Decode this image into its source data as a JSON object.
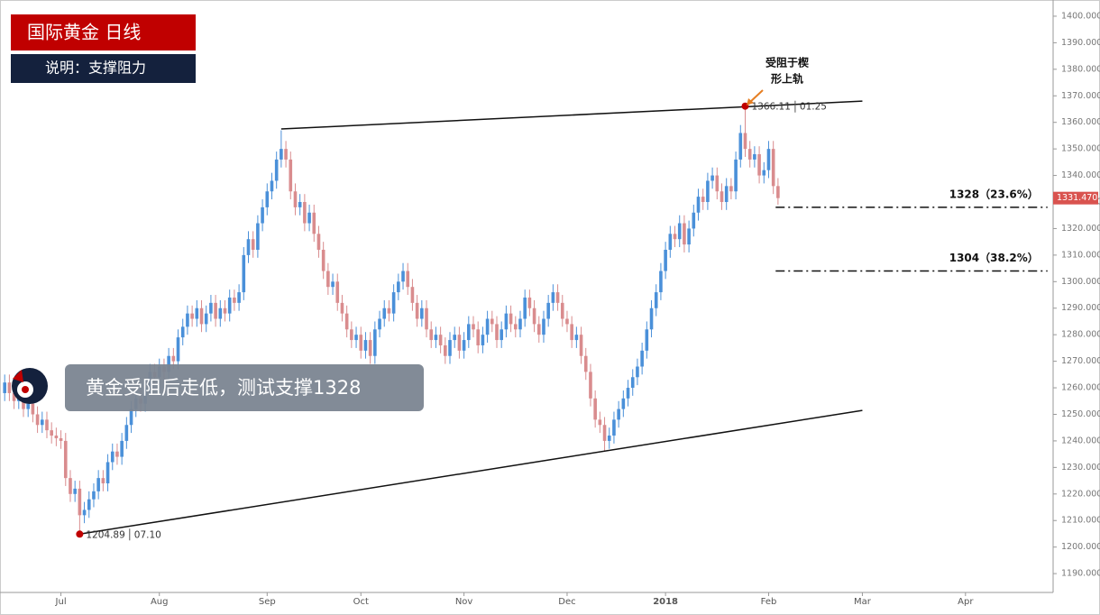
{
  "chart_data": {
    "type": "candlestick",
    "title": "国际黄金  日线",
    "subtitle": "说明：支撑阻力",
    "callout": "黄金受阻后走低，测试支撑1328",
    "annotation": [
      "受阻于楔",
      "形上轨"
    ],
    "up_color": "#4a90d9",
    "down_color": "#d98c8e",
    "xlim": [
      -1,
      223.7
    ],
    "ylim": [
      1182.9,
      1406.1
    ],
    "xticks": [
      {
        "value": 12,
        "label": "Jul"
      },
      {
        "value": 33,
        "label": "Aug"
      },
      {
        "value": 56,
        "label": "Sep"
      },
      {
        "value": 76,
        "label": "Oct"
      },
      {
        "value": 98,
        "label": "Nov"
      },
      {
        "value": 120,
        "label": "Dec"
      },
      {
        "value": 141,
        "label": "2018"
      },
      {
        "value": 163,
        "label": "Feb"
      },
      {
        "value": 183,
        "label": "Mar"
      },
      {
        "value": 205,
        "label": "Apr"
      }
    ],
    "yticks": [
      {
        "value": 1190,
        "label": "1190.000"
      },
      {
        "value": 1200,
        "label": "1200.000"
      },
      {
        "value": 1210,
        "label": "1210.000"
      },
      {
        "value": 1220,
        "label": "1220.000"
      },
      {
        "value": 1230,
        "label": "1230.000"
      },
      {
        "value": 1240,
        "label": "1240.000"
      },
      {
        "value": 1250,
        "label": "1250.000"
      },
      {
        "value": 1260,
        "label": "1260.000"
      },
      {
        "value": 1270,
        "label": "1270.000"
      },
      {
        "value": 1280,
        "label": "1280.000"
      },
      {
        "value": 1290,
        "label": "1290.000"
      },
      {
        "value": 1300,
        "label": "1300.000"
      },
      {
        "value": 1310,
        "label": "1310.000"
      },
      {
        "value": 1320,
        "label": "1320.000"
      },
      {
        "value": 1330,
        "label": "1330.000"
      },
      {
        "value": 1340,
        "label": "1340.000"
      },
      {
        "value": 1350,
        "label": "1350.000"
      },
      {
        "value": 1360,
        "label": "1360.000"
      },
      {
        "value": 1370,
        "label": "1370.000"
      },
      {
        "value": 1380,
        "label": "1380.000"
      },
      {
        "value": 1390,
        "label": "1390.000"
      },
      {
        "value": 1400,
        "label": "1400.000"
      }
    ],
    "open": [
      1258,
      1262,
      1258,
      1255,
      1257,
      1252,
      1254,
      1250,
      1246,
      1248,
      1244,
      1242,
      1241,
      1240,
      1226,
      1220,
      1222,
      1212,
      1214,
      1218,
      1221,
      1226,
      1224,
      1232,
      1236,
      1234,
      1240,
      1246,
      1252,
      1256,
      1254,
      1260,
      1266,
      1264,
      1268,
      1266,
      1272,
      1270,
      1279,
      1283,
      1288,
      1286,
      1290,
      1284,
      1288,
      1292,
      1286,
      1290,
      1288,
      1294,
      1292,
      1296,
      1310,
      1316,
      1312,
      1322,
      1328,
      1334,
      1338,
      1346,
      1350,
      1346,
      1334,
      1328,
      1330,
      1322,
      1326,
      1318,
      1312,
      1304,
      1298,
      1300,
      1292,
      1288,
      1282,
      1278,
      1280,
      1274,
      1278,
      1272,
      1282,
      1286,
      1290,
      1288,
      1296,
      1300,
      1304,
      1298,
      1292,
      1286,
      1290,
      1282,
      1278,
      1280,
      1276,
      1272,
      1278,
      1280,
      1274,
      1278,
      1284,
      1282,
      1276,
      1280,
      1286,
      1284,
      1278,
      1282,
      1288,
      1284,
      1282,
      1286,
      1294,
      1290,
      1284,
      1280,
      1286,
      1292,
      1296,
      1292,
      1286,
      1284,
      1278,
      1280,
      1272,
      1266,
      1256,
      1248,
      1246,
      1240,
      1242,
      1248,
      1252,
      1256,
      1260,
      1264,
      1268,
      1274,
      1282,
      1290,
      1296,
      1304,
      1312,
      1318,
      1316,
      1322,
      1314,
      1320,
      1326,
      1332,
      1330,
      1338,
      1340,
      1334,
      1330,
      1336,
      1334,
      1346,
      1356,
      1350,
      1346,
      1348,
      1340,
      1342,
      1350,
      1336
    ],
    "high": [
      1265,
      1265,
      1261,
      1260,
      1260,
      1257,
      1257,
      1253,
      1251,
      1251,
      1247,
      1245,
      1244,
      1243,
      1229,
      1225,
      1225,
      1217,
      1221,
      1224,
      1229,
      1229,
      1235,
      1239,
      1239,
      1243,
      1249,
      1255,
      1259,
      1259,
      1263,
      1269,
      1269,
      1271,
      1271,
      1275,
      1275,
      1282,
      1286,
      1291,
      1291,
      1293,
      1293,
      1291,
      1295,
      1295,
      1293,
      1293,
      1297,
      1297,
      1299,
      1313,
      1319,
      1319,
      1325,
      1331,
      1337,
      1341,
      1349,
      1357,
      1353,
      1349,
      1337,
      1333,
      1333,
      1329,
      1329,
      1321,
      1315,
      1307,
      1303,
      1303,
      1295,
      1291,
      1285,
      1283,
      1283,
      1281,
      1281,
      1285,
      1289,
      1293,
      1293,
      1299,
      1303,
      1307,
      1307,
      1301,
      1295,
      1293,
      1293,
      1285,
      1283,
      1283,
      1279,
      1281,
      1283,
      1283,
      1281,
      1287,
      1287,
      1285,
      1283,
      1289,
      1289,
      1287,
      1285,
      1291,
      1291,
      1287,
      1289,
      1297,
      1297,
      1293,
      1287,
      1289,
      1295,
      1299,
      1299,
      1295,
      1289,
      1287,
      1283,
      1283,
      1275,
      1269,
      1259,
      1251,
      1249,
      1245,
      1251,
      1255,
      1259,
      1263,
      1267,
      1271,
      1277,
      1285,
      1293,
      1299,
      1307,
      1315,
      1321,
      1321,
      1325,
      1325,
      1323,
      1329,
      1335,
      1335,
      1341,
      1343,
      1343,
      1337,
      1339,
      1339,
      1349,
      1359,
      1366.11,
      1353,
      1351,
      1351,
      1345,
      1353,
      1353,
      1339
    ],
    "low": [
      1255,
      1255,
      1252,
      1252,
      1249,
      1249,
      1247,
      1243,
      1243,
      1241,
      1239,
      1238,
      1237,
      1223,
      1217,
      1217,
      1204.89,
      1209,
      1211,
      1215,
      1218,
      1221,
      1221,
      1229,
      1231,
      1231,
      1237,
      1243,
      1249,
      1251,
      1251,
      1257,
      1261,
      1261,
      1263,
      1263,
      1267,
      1267,
      1276,
      1280,
      1283,
      1283,
      1281,
      1281,
      1285,
      1283,
      1283,
      1285,
      1285,
      1289,
      1289,
      1293,
      1307,
      1309,
      1309,
      1319,
      1325,
      1331,
      1335,
      1343,
      1343,
      1331,
      1325,
      1325,
      1319,
      1319,
      1315,
      1309,
      1301,
      1295,
      1295,
      1289,
      1285,
      1279,
      1275,
      1275,
      1271,
      1271,
      1269,
      1269,
      1279,
      1283,
      1285,
      1285,
      1293,
      1297,
      1295,
      1289,
      1283,
      1283,
      1279,
      1275,
      1275,
      1273,
      1269,
      1269,
      1275,
      1271,
      1271,
      1275,
      1279,
      1273,
      1273,
      1277,
      1281,
      1275,
      1275,
      1279,
      1281,
      1279,
      1279,
      1283,
      1287,
      1281,
      1277,
      1277,
      1283,
      1289,
      1289,
      1283,
      1281,
      1275,
      1275,
      1269,
      1263,
      1253,
      1245,
      1243,
      1236,
      1237,
      1239,
      1245,
      1249,
      1253,
      1257,
      1261,
      1265,
      1271,
      1279,
      1287,
      1293,
      1301,
      1309,
      1313,
      1313,
      1311,
      1311,
      1317,
      1323,
      1327,
      1327,
      1335,
      1331,
      1327,
      1327,
      1331,
      1331,
      1343,
      1347,
      1343,
      1343,
      1337,
      1337,
      1339,
      1333,
      1329
    ],
    "close": [
      1262,
      1258,
      1255,
      1257,
      1252,
      1254,
      1250,
      1246,
      1248,
      1244,
      1242,
      1241,
      1240,
      1226,
      1220,
      1222,
      1212,
      1214,
      1218,
      1221,
      1226,
      1224,
      1232,
      1236,
      1234,
      1240,
      1246,
      1252,
      1256,
      1254,
      1260,
      1266,
      1264,
      1268,
      1266,
      1272,
      1270,
      1279,
      1283,
      1288,
      1286,
      1290,
      1284,
      1288,
      1292,
      1286,
      1290,
      1288,
      1294,
      1292,
      1296,
      1310,
      1316,
      1312,
      1322,
      1328,
      1334,
      1338,
      1346,
      1350,
      1346,
      1334,
      1328,
      1330,
      1322,
      1326,
      1318,
      1312,
      1304,
      1298,
      1300,
      1292,
      1288,
      1282,
      1278,
      1280,
      1274,
      1278,
      1272,
      1282,
      1286,
      1290,
      1288,
      1296,
      1300,
      1304,
      1298,
      1292,
      1286,
      1290,
      1282,
      1278,
      1280,
      1276,
      1272,
      1278,
      1280,
      1274,
      1278,
      1284,
      1282,
      1276,
      1280,
      1286,
      1284,
      1278,
      1282,
      1288,
      1284,
      1282,
      1286,
      1294,
      1290,
      1284,
      1280,
      1286,
      1292,
      1296,
      1292,
      1286,
      1284,
      1278,
      1280,
      1272,
      1266,
      1256,
      1248,
      1246,
      1240,
      1242,
      1248,
      1252,
      1256,
      1260,
      1264,
      1268,
      1274,
      1282,
      1290,
      1296,
      1304,
      1312,
      1318,
      1316,
      1322,
      1314,
      1320,
      1326,
      1332,
      1330,
      1338,
      1340,
      1334,
      1330,
      1336,
      1334,
      1346,
      1356,
      1350,
      1346,
      1348,
      1340,
      1342,
      1350,
      1336,
      1331.47
    ],
    "last_price_label": "1331.470",
    "markers": [
      {
        "x": 16,
        "field": "low",
        "date": "07.10"
      },
      {
        "x": 158,
        "field": "high",
        "date": "01.25"
      }
    ],
    "trendlines": [
      {
        "x": [
          16,
          183
        ],
        "y": [
          1204.89,
          1251.5
        ]
      },
      {
        "x": [
          59,
          183
        ],
        "y": [
          1357.5,
          1368
        ]
      }
    ],
    "levels": [
      {
        "value": 1328,
        "label": "1328（23.6%）",
        "x": [
          164.5,
          222.5
        ]
      },
      {
        "value": 1304,
        "label": "1304（38.2%）",
        "x": [
          164.5,
          222.5
        ]
      }
    ]
  }
}
